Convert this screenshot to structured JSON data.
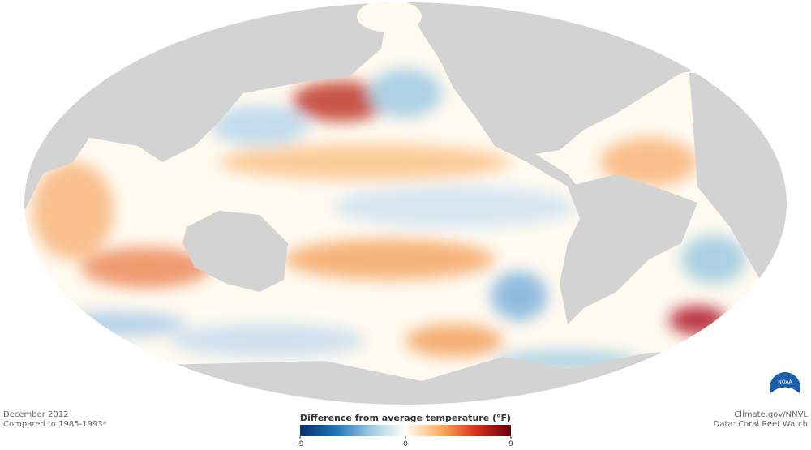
{
  "footer_left": {
    "date": "December 2012",
    "baseline": "Compared to 1985-1993*"
  },
  "footer_right": {
    "credit": "Climate.gov/NNVL",
    "source": "Data: Coral Reef Watch"
  },
  "logo": "NOAA",
  "colorbar": {
    "title": "Difference from average temperature (°F)",
    "lim": [
      -9,
      9
    ],
    "ticks": [
      -9,
      0,
      9
    ],
    "colors": [
      "#08306b",
      "#2171b5",
      "#9ecae1",
      "#fffdf5",
      "#fdae61",
      "#d7301f",
      "#67000d"
    ]
  }
}
